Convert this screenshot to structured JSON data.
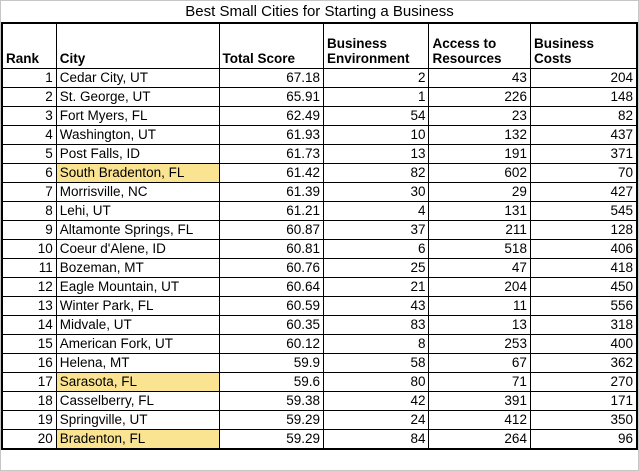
{
  "title": "Best Small Cities for Starting a Business",
  "colors": {
    "city_column_fill": "#DCE6F1",
    "highlight_fill": "#FBE491",
    "grid_border": "#000000",
    "background": "#FFFFFF"
  },
  "table": {
    "columns": [
      "Rank",
      "City",
      "Total Score",
      "Business Environment",
      "Access to Resources",
      "Business Costs"
    ],
    "rows": [
      {
        "rank": 1,
        "city": "Cedar City, UT",
        "total_score": "67.18",
        "business_environment": 2,
        "access_to_resources": 43,
        "business_costs": 204,
        "highlighted": false
      },
      {
        "rank": 2,
        "city": "St. George, UT",
        "total_score": "65.91",
        "business_environment": 1,
        "access_to_resources": 226,
        "business_costs": 148,
        "highlighted": false
      },
      {
        "rank": 3,
        "city": "Fort Myers, FL",
        "total_score": "62.49",
        "business_environment": 54,
        "access_to_resources": 23,
        "business_costs": 82,
        "highlighted": false
      },
      {
        "rank": 4,
        "city": "Washington, UT",
        "total_score": "61.93",
        "business_environment": 10,
        "access_to_resources": 132,
        "business_costs": 437,
        "highlighted": false
      },
      {
        "rank": 5,
        "city": "Post Falls, ID",
        "total_score": "61.73",
        "business_environment": 13,
        "access_to_resources": 191,
        "business_costs": 371,
        "highlighted": false
      },
      {
        "rank": 6,
        "city": "South Bradenton, FL",
        "total_score": "61.42",
        "business_environment": 82,
        "access_to_resources": 602,
        "business_costs": 70,
        "highlighted": true
      },
      {
        "rank": 7,
        "city": "Morrisville, NC",
        "total_score": "61.39",
        "business_environment": 30,
        "access_to_resources": 29,
        "business_costs": 427,
        "highlighted": false
      },
      {
        "rank": 8,
        "city": "Lehi, UT",
        "total_score": "61.21",
        "business_environment": 4,
        "access_to_resources": 131,
        "business_costs": 545,
        "highlighted": false
      },
      {
        "rank": 9,
        "city": "Altamonte Springs, FL",
        "total_score": "60.87",
        "business_environment": 37,
        "access_to_resources": 211,
        "business_costs": 128,
        "highlighted": false
      },
      {
        "rank": 10,
        "city": "Coeur d'Alene, ID",
        "total_score": "60.81",
        "business_environment": 6,
        "access_to_resources": 518,
        "business_costs": 406,
        "highlighted": false
      },
      {
        "rank": 11,
        "city": "Bozeman, MT",
        "total_score": "60.76",
        "business_environment": 25,
        "access_to_resources": 47,
        "business_costs": 418,
        "highlighted": false
      },
      {
        "rank": 12,
        "city": "Eagle Mountain, UT",
        "total_score": "60.64",
        "business_environment": 21,
        "access_to_resources": 204,
        "business_costs": 450,
        "highlighted": false
      },
      {
        "rank": 13,
        "city": "Winter Park, FL",
        "total_score": "60.59",
        "business_environment": 43,
        "access_to_resources": 11,
        "business_costs": 556,
        "highlighted": false
      },
      {
        "rank": 14,
        "city": "Midvale, UT",
        "total_score": "60.35",
        "business_environment": 83,
        "access_to_resources": 13,
        "business_costs": 318,
        "highlighted": false
      },
      {
        "rank": 15,
        "city": "American Fork, UT",
        "total_score": "60.12",
        "business_environment": 8,
        "access_to_resources": 253,
        "business_costs": 400,
        "highlighted": false
      },
      {
        "rank": 16,
        "city": "Helena, MT",
        "total_score": "59.9",
        "business_environment": 58,
        "access_to_resources": 67,
        "business_costs": 362,
        "highlighted": false
      },
      {
        "rank": 17,
        "city": "Sarasota, FL",
        "total_score": "59.6",
        "business_environment": 80,
        "access_to_resources": 71,
        "business_costs": 270,
        "highlighted": true
      },
      {
        "rank": 18,
        "city": "Casselberry, FL",
        "total_score": "59.38",
        "business_environment": 42,
        "access_to_resources": 391,
        "business_costs": 171,
        "highlighted": false
      },
      {
        "rank": 19,
        "city": "Springville, UT",
        "total_score": "59.29",
        "business_environment": 24,
        "access_to_resources": 412,
        "business_costs": 350,
        "highlighted": false
      },
      {
        "rank": 20,
        "city": "Bradenton, FL",
        "total_score": "59.29",
        "business_environment": 84,
        "access_to_resources": 264,
        "business_costs": 96,
        "highlighted": true
      }
    ]
  }
}
